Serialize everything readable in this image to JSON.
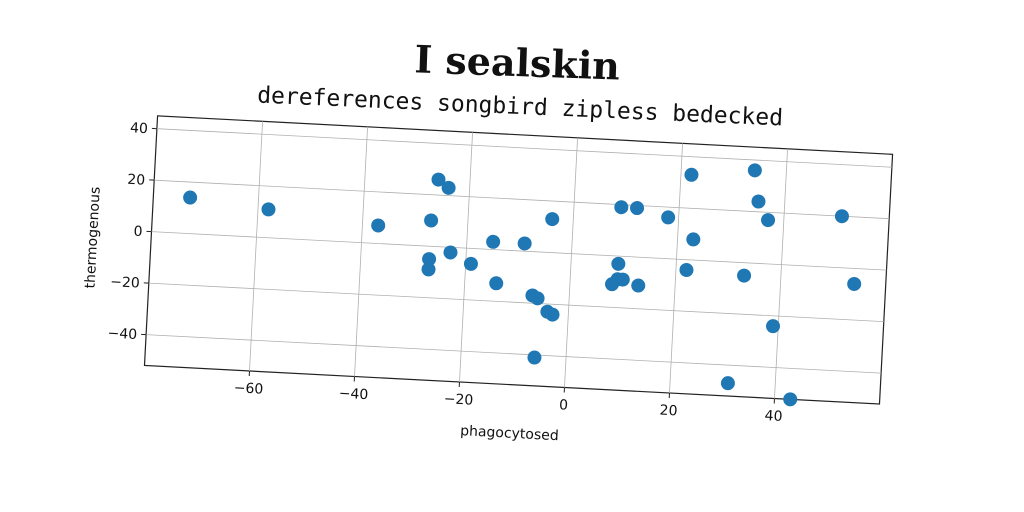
{
  "chart_data": {
    "type": "scatter",
    "title": "I sealskin",
    "subtitle": "dereferences songbird zipless bedecked",
    "xlabel": "phagocytosed",
    "ylabel": "thermogenous",
    "xlim": [
      -80,
      60
    ],
    "ylim": [
      -52,
      45
    ],
    "xticks": [
      -60,
      -40,
      -20,
      0,
      20,
      40
    ],
    "yticks": [
      -40,
      -20,
      0,
      20,
      40
    ],
    "grid": true,
    "color": "#1f77b4",
    "points": [
      {
        "x": -73,
        "y": 14
      },
      {
        "x": -58,
        "y": 11
      },
      {
        "x": -37,
        "y": 7
      },
      {
        "x": -26,
        "y": 26
      },
      {
        "x": -24,
        "y": 23
      },
      {
        "x": -27,
        "y": 10
      },
      {
        "x": -23,
        "y": -2
      },
      {
        "x": -27,
        "y": -5
      },
      {
        "x": -27,
        "y": -9
      },
      {
        "x": -19,
        "y": -6
      },
      {
        "x": -15,
        "y": 3
      },
      {
        "x": -14,
        "y": -13
      },
      {
        "x": -9,
        "y": 3
      },
      {
        "x": -4,
        "y": 13
      },
      {
        "x": -7,
        "y": -17
      },
      {
        "x": -6,
        "y": -18
      },
      {
        "x": -4,
        "y": -23
      },
      {
        "x": -3,
        "y": -24
      },
      {
        "x": -6,
        "y": -41
      },
      {
        "x": 8,
        "y": -11
      },
      {
        "x": 9,
        "y": -3
      },
      {
        "x": 9,
        "y": -9
      },
      {
        "x": 10,
        "y": -9
      },
      {
        "x": 13,
        "y": -11
      },
      {
        "x": 9,
        "y": 19
      },
      {
        "x": 12,
        "y": 19
      },
      {
        "x": 18,
        "y": 16
      },
      {
        "x": 22,
        "y": 33
      },
      {
        "x": 23,
        "y": 8
      },
      {
        "x": 22,
        "y": -4
      },
      {
        "x": 34,
        "y": 36
      },
      {
        "x": 35,
        "y": 24
      },
      {
        "x": 37,
        "y": 17
      },
      {
        "x": 33,
        "y": -5
      },
      {
        "x": 39,
        "y": -24
      },
      {
        "x": 31,
        "y": -47
      },
      {
        "x": 43,
        "y": -52
      },
      {
        "x": 51,
        "y": 20
      },
      {
        "x": 54,
        "y": -6
      }
    ]
  }
}
